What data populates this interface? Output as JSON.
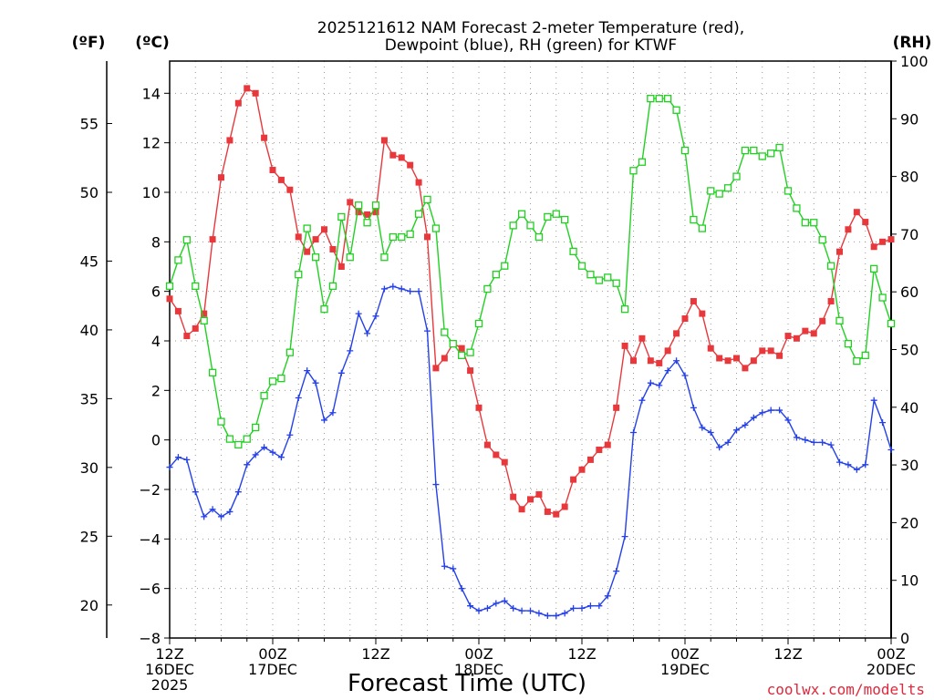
{
  "chart_data": {
    "type": "line",
    "title_line1": "2025121612 NAM Forecast 2-meter Temperature (red),",
    "title_line2": "Dewpoint (blue), RH (green) for KTWF",
    "xlabel": "Forecast Time (UTC)",
    "credit": "coolwx.com/modelts",
    "unit_left_outer": "(ºF)",
    "unit_left_inner": "(ºC)",
    "unit_right": "(RH)",
    "x_range_hours": [
      0,
      84
    ],
    "ylim_c": [
      -8,
      15.3
    ],
    "ylim_f": [
      17.6,
      59.54
    ],
    "ylim_rh": [
      0,
      100
    ],
    "grid": true,
    "x_ticks": [
      {
        "hour": 0,
        "lines": [
          "12Z",
          "16DEC",
          "2025"
        ]
      },
      {
        "hour": 12,
        "lines": [
          "00Z",
          "17DEC"
        ]
      },
      {
        "hour": 24,
        "lines": [
          "12Z"
        ]
      },
      {
        "hour": 36,
        "lines": [
          "00Z",
          "18DEC"
        ]
      },
      {
        "hour": 48,
        "lines": [
          "12Z"
        ]
      },
      {
        "hour": 60,
        "lines": [
          "00Z",
          "19DEC"
        ]
      },
      {
        "hour": 72,
        "lines": [
          "12Z"
        ]
      },
      {
        "hour": 84,
        "lines": [
          "00Z",
          "20DEC"
        ]
      }
    ],
    "c_ticks": [
      "−8",
      "−6",
      "−4",
      "−2",
      "0",
      "2",
      "4",
      "6",
      "8",
      "10",
      "12",
      "14"
    ],
    "f_ticks": [
      "20",
      "25",
      "30",
      "35",
      "40",
      "45",
      "50",
      "55"
    ],
    "rh_ticks": [
      "0",
      "10",
      "20",
      "30",
      "40",
      "50",
      "60",
      "70",
      "80",
      "90",
      "100"
    ],
    "series": [
      {
        "name": "Temperature",
        "units": "C",
        "color": "#e8383c",
        "marker": "filled-square",
        "x": [
          0,
          1,
          2,
          3,
          4,
          5,
          6,
          7,
          8,
          9,
          10,
          11,
          12,
          13,
          14,
          15,
          16,
          17,
          18,
          19,
          20,
          21,
          22,
          23,
          24,
          25,
          26,
          27,
          28,
          29,
          30,
          31,
          32,
          33,
          34,
          35,
          36,
          37,
          38,
          39,
          40,
          41,
          42,
          43,
          44,
          45,
          46,
          47,
          48,
          49,
          50,
          51,
          52,
          53,
          54,
          55,
          56,
          57,
          58,
          59,
          60,
          61,
          62,
          63,
          64,
          65,
          66,
          67,
          68,
          69,
          70,
          71,
          72,
          73,
          74,
          75,
          76,
          77,
          78,
          79,
          80,
          81,
          82,
          83,
          84
        ],
        "values": [
          5.7,
          5.2,
          4.2,
          4.5,
          5.1,
          8.1,
          10.6,
          12.1,
          13.6,
          14.2,
          14,
          12.2,
          10.9,
          10.5,
          10.1,
          8.2,
          7.6,
          8.1,
          8.5,
          7.7,
          7.0,
          9.6,
          9.2,
          9.1,
          9.2,
          12.1,
          11.5,
          11.4,
          11.1,
          10.4,
          8.2,
          2.9,
          3.3,
          3.9,
          3.7,
          2.8,
          1.3,
          -0.2,
          -0.6,
          -0.9,
          -2.3,
          -2.8,
          -2.4,
          -2.2,
          -2.9,
          -3.0,
          -2.7,
          -1.6,
          -1.2,
          -0.8,
          -0.4,
          -0.2,
          1.3,
          3.8,
          3.2,
          4.1,
          3.2,
          3.1,
          3.6,
          4.3,
          4.9,
          5.6,
          5.1,
          3.7,
          3.3,
          3.2,
          3.3,
          2.9,
          3.2,
          3.6,
          3.6,
          3.4,
          4.2,
          4.1,
          4.4,
          4.3,
          4.8,
          5.6,
          7.6,
          8.5,
          9.2,
          8.8,
          7.8,
          8.0,
          8.1
        ]
      },
      {
        "name": "Dewpoint",
        "units": "C",
        "color": "#2440e8",
        "marker": "plus",
        "x": [
          0,
          1,
          2,
          3,
          4,
          5,
          6,
          7,
          8,
          9,
          10,
          11,
          12,
          13,
          14,
          15,
          16,
          17,
          18,
          19,
          20,
          21,
          22,
          23,
          24,
          25,
          26,
          27,
          28,
          29,
          30,
          31,
          32,
          33,
          34,
          35,
          36,
          37,
          38,
          39,
          40,
          41,
          42,
          43,
          44,
          45,
          46,
          47,
          48,
          49,
          50,
          51,
          52,
          53,
          54,
          55,
          56,
          57,
          58,
          59,
          60,
          61,
          62,
          63,
          64,
          65,
          66,
          67,
          68,
          69,
          70,
          71,
          72,
          73,
          74,
          75,
          76,
          77,
          78,
          79,
          80,
          81,
          82,
          83,
          84
        ],
        "values": [
          -1.1,
          -0.7,
          -0.8,
          -2.1,
          -3.1,
          -2.8,
          -3.1,
          -2.9,
          -2.1,
          -1.0,
          -0.6,
          -0.3,
          -0.5,
          -0.7,
          0.2,
          1.7,
          2.8,
          2.3,
          0.8,
          1.1,
          2.7,
          3.6,
          5.1,
          4.3,
          5.0,
          6.1,
          6.2,
          6.1,
          6.0,
          6.0,
          4.4,
          -1.8,
          -5.1,
          -5.2,
          -6.0,
          -6.7,
          -6.9,
          -6.8,
          -6.6,
          -6.5,
          -6.8,
          -6.9,
          -6.9,
          -7.0,
          -7.1,
          -7.1,
          -7.0,
          -6.8,
          -6.8,
          -6.7,
          -6.7,
          -6.3,
          -5.3,
          -3.9,
          0.3,
          1.6,
          2.3,
          2.2,
          2.8,
          3.2,
          2.6,
          1.3,
          0.5,
          0.3,
          -0.3,
          -0.1,
          0.4,
          0.6,
          0.9,
          1.1,
          1.2,
          1.2,
          0.8,
          0.1,
          0.0,
          -0.1,
          -0.1,
          -0.2,
          -0.9,
          -1.0,
          -1.2,
          -1.0,
          1.6,
          0.7,
          -0.4
        ]
      },
      {
        "name": "RH",
        "units": "%",
        "color": "#22d022",
        "marker": "hollow-square",
        "x": [
          0,
          1,
          2,
          3,
          4,
          5,
          6,
          7,
          8,
          9,
          10,
          11,
          12,
          13,
          14,
          15,
          16,
          17,
          18,
          19,
          20,
          21,
          22,
          23,
          24,
          25,
          26,
          27,
          28,
          29,
          30,
          31,
          32,
          33,
          34,
          35,
          36,
          37,
          38,
          39,
          40,
          41,
          42,
          43,
          44,
          45,
          46,
          47,
          48,
          49,
          50,
          51,
          52,
          53,
          54,
          55,
          56,
          57,
          58,
          59,
          60,
          61,
          62,
          63,
          64,
          65,
          66,
          67,
          68,
          69,
          70,
          71,
          72,
          73,
          74,
          75,
          76,
          77,
          78,
          79,
          80,
          81,
          82,
          83,
          84
        ],
        "values": [
          61,
          65.5,
          69,
          61,
          55,
          46,
          37.5,
          34.5,
          33.5,
          34.5,
          36.5,
          42,
          44.5,
          45,
          49.5,
          63,
          71,
          66,
          57,
          61,
          73,
          66,
          75,
          72,
          75,
          66,
          69.5,
          69.5,
          70,
          73.5,
          76,
          71,
          53,
          51,
          49,
          49.5,
          54.5,
          60.5,
          63,
          64.5,
          71.5,
          73.5,
          71.5,
          69.5,
          73,
          73.5,
          72.5,
          67,
          64.5,
          63,
          62,
          62.5,
          61.5,
          57,
          81,
          82.5,
          93.5,
          93.5,
          93.5,
          91.5,
          84.5,
          72.5,
          71,
          77.5,
          77,
          78,
          80,
          84.5,
          84.5,
          83.5,
          84,
          85,
          77.5,
          74.5,
          72,
          72,
          69,
          64.5,
          55,
          51,
          48,
          49,
          64,
          59,
          54.5
        ]
      }
    ]
  }
}
